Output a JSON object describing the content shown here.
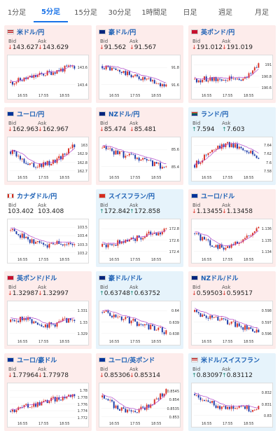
{
  "tabs": [
    {
      "label": "1分足"
    },
    {
      "label": "5分足",
      "active": true
    },
    {
      "label": "15分足"
    },
    {
      "label": "30分足"
    },
    {
      "label": "1時間足"
    },
    {
      "label": "日足"
    },
    {
      "label": "週足"
    },
    {
      "label": "月足"
    }
  ],
  "labels": {
    "bid": "Bid",
    "ask": "Ask"
  },
  "colors": {
    "down_bg": "#fdeceb",
    "up_bg": "#e6f3fb",
    "bull": "#d93025",
    "bear": "#1a3aa8",
    "ma": "#b040c8"
  },
  "cards": [
    {
      "pair": "米ドル/円",
      "dir": "down",
      "bid": "143.627",
      "ask": "143.629",
      "yticks": [
        "143.6",
        "143.4"
      ],
      "xticks": [
        "16:55",
        "17:55",
        "18:55"
      ],
      "flag": "us",
      "trend": "up"
    },
    {
      "pair": "豪ドル/円",
      "dir": "down",
      "bid": "91.562",
      "ask": "91.567",
      "yticks": [
        "91.8",
        "91.6"
      ],
      "xticks": [
        "16:55",
        "17:55",
        "18:55"
      ],
      "flag": "au",
      "trend": "down"
    },
    {
      "pair": "英ポンド/円",
      "dir": "down",
      "bid": "191.012",
      "ask": "191.019",
      "yticks": [
        "191",
        "190.8",
        "190.6"
      ],
      "xticks": [
        "16:55",
        "17:55",
        "18:55"
      ],
      "flag": "gb",
      "trend": "flat-up"
    },
    {
      "pair": "ユーロ/円",
      "dir": "down",
      "bid": "162.963",
      "ask": "162.967",
      "yticks": [
        "163",
        "162.9",
        "162.8",
        "162.7"
      ],
      "xticks": [
        "16:55",
        "17:55",
        "18:55"
      ],
      "flag": "eu",
      "trend": "down-up"
    },
    {
      "pair": "NZドル/円",
      "dir": "down",
      "bid": "85.474",
      "ask": "85.481",
      "yticks": [
        "85.6",
        "85.4"
      ],
      "xticks": [
        "16:55",
        "17:55",
        "18:55"
      ],
      "flag": "nz",
      "trend": "down"
    },
    {
      "pair": "ランド/円",
      "dir": "up",
      "bid": "7.594",
      "ask": "7.603",
      "yticks": [
        "7.64",
        "7.62",
        "7.6",
        "7.58"
      ],
      "xticks": [
        "16:55",
        "17:55",
        "18:55"
      ],
      "flag": "za",
      "trend": "up-down"
    },
    {
      "pair": "カナダドル/円",
      "dir": "none",
      "bid": "103.402",
      "ask": "103.408",
      "yticks": [
        "103.5",
        "103.4",
        "103.3",
        "103.2"
      ],
      "xticks": [
        "16:55",
        "17:55",
        "18:55"
      ],
      "flag": "ca",
      "trend": "down-flat"
    },
    {
      "pair": "スイスフラン/円",
      "dir": "up",
      "bid": "172.842",
      "ask": "172.858",
      "yticks": [
        "172.8",
        "172.6",
        "172.4"
      ],
      "xticks": [
        "16:55",
        "17:55",
        "18:55"
      ],
      "flag": "ch",
      "trend": "up"
    },
    {
      "pair": "ユーロ/ドル",
      "dir": "down",
      "bid": "1.13455",
      "ask": "1.13458",
      "yticks": [
        "1.136",
        "1.135",
        "1.134"
      ],
      "xticks": [
        "16:55",
        "17:55",
        "18:55"
      ],
      "flag": "eu",
      "trend": "down-up"
    },
    {
      "pair": "英ポンド/ドル",
      "dir": "down",
      "bid": "1.32987",
      "ask": "1.32997",
      "yticks": [
        "1.331",
        "1.33",
        "1.329"
      ],
      "xticks": [
        "16:55",
        "17:55",
        "18:55"
      ],
      "flag": "gb",
      "trend": "flat"
    },
    {
      "pair": "豪ドル/ドル",
      "dir": "up",
      "bid": "0.63748",
      "ask": "0.63752",
      "yticks": [
        "0.64",
        "0.639",
        "0.638"
      ],
      "xticks": [
        "16:55",
        "17:55",
        "18:55"
      ],
      "flag": "au",
      "trend": "down"
    },
    {
      "pair": "NZドル/ドル",
      "dir": "down",
      "bid": "0.59503",
      "ask": "0.59517",
      "yticks": [
        "0.598",
        "0.597",
        "0.596"
      ],
      "xticks": [
        "16:55",
        "17:55",
        "18:55"
      ],
      "flag": "nz",
      "trend": "down"
    },
    {
      "pair": "ユーロ/豪ドル",
      "dir": "down",
      "bid": "1.77964",
      "ask": "1.77978",
      "yticks": [
        "1.78",
        "1.778",
        "1.776",
        "1.774",
        "1.772"
      ],
      "xticks": [
        "16:55",
        "17:55",
        "18:55"
      ],
      "flag": "eu",
      "trend": "up"
    },
    {
      "pair": "ユーロ/英ポンド",
      "dir": "down",
      "bid": "0.85306",
      "ask": "0.85314",
      "yticks": [
        "0.8545",
        "0.854",
        "0.8535",
        "0.853"
      ],
      "xticks": [
        "16:55",
        "17:55",
        "18:55"
      ],
      "flag": "eu",
      "trend": "down-up"
    },
    {
      "pair": "米ドル/スイスフラン",
      "dir": "up",
      "bid": "0.83097",
      "ask": "0.83112",
      "yticks": [
        "0.832",
        "0.831",
        "0.83"
      ],
      "xticks": [
        "16:55",
        "17:55",
        "18:55"
      ],
      "flag": "us",
      "trend": "down-flat"
    }
  ]
}
